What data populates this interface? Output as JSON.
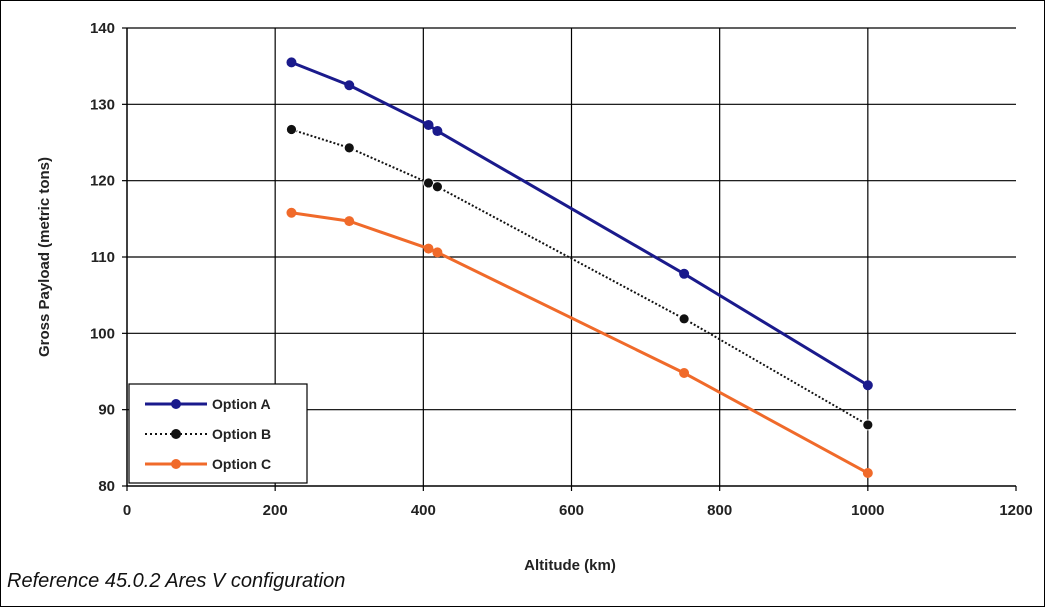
{
  "caption": "Reference 45.0.2 Ares V configuration",
  "chart_data": {
    "type": "line",
    "title": "",
    "xlabel": "Altitude (km)",
    "ylabel": "Gross Payload (metric tons)",
    "xlim": [
      0,
      1200
    ],
    "ylim": [
      80,
      140
    ],
    "xticks": [
      0,
      200,
      400,
      600,
      800,
      1000,
      1200
    ],
    "yticks": [
      80,
      90,
      100,
      110,
      120,
      130,
      140
    ],
    "grid": true,
    "legend_position": "bottom-left",
    "series": [
      {
        "name": "Option A",
        "color": "#1a1a8c",
        "style": "solid",
        "points": [
          [
            222,
            135.5
          ],
          [
            300,
            132.5
          ],
          [
            407,
            127.3
          ],
          [
            419,
            126.5
          ],
          [
            752,
            107.8
          ],
          [
            1000,
            93.2
          ]
        ]
      },
      {
        "name": "Option B",
        "color": "#111111",
        "style": "dotted",
        "points": [
          [
            222,
            126.7
          ],
          [
            300,
            124.3
          ],
          [
            407,
            119.7
          ],
          [
            419,
            119.2
          ],
          [
            752,
            101.9
          ],
          [
            1000,
            88.0
          ]
        ]
      },
      {
        "name": "Option C",
        "color": "#f06a2a",
        "style": "solid",
        "points": [
          [
            222,
            115.8
          ],
          [
            300,
            114.7
          ],
          [
            407,
            111.1
          ],
          [
            419,
            110.6
          ],
          [
            752,
            94.8
          ],
          [
            1000,
            81.7
          ]
        ]
      }
    ]
  }
}
